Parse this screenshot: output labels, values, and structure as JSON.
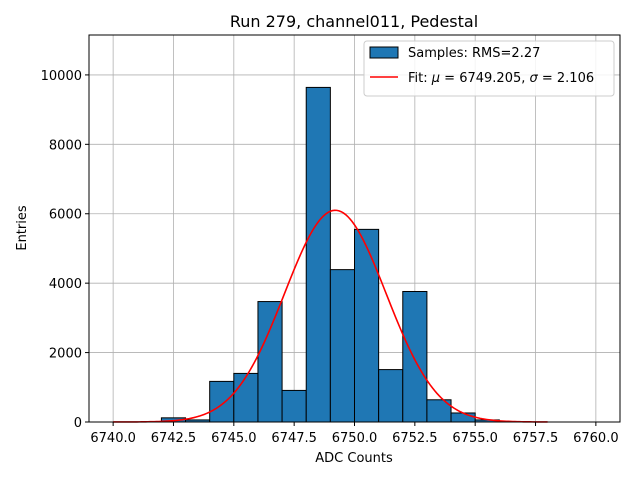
{
  "chart_data": {
    "type": "bar",
    "title": "Run 279, channel011, Pedestal",
    "xlabel": "ADC Counts",
    "ylabel": "Entries",
    "xlim": [
      6739.0,
      6761.0
    ],
    "ylim": [
      0,
      11150
    ],
    "x_ticks": [
      6740.0,
      6742.5,
      6745.0,
      6747.5,
      6750.0,
      6752.5,
      6755.0,
      6757.5,
      6760.0
    ],
    "x_tick_labels": [
      "6740.0",
      "6742.5",
      "6745.0",
      "6747.5",
      "6750.0",
      "6752.5",
      "6755.0",
      "6757.5",
      "6760.0"
    ],
    "y_ticks": [
      0,
      2000,
      4000,
      6000,
      8000,
      10000
    ],
    "y_tick_labels": [
      "0",
      "2000",
      "4000",
      "6000",
      "8000",
      "10000"
    ],
    "grid": true,
    "bin_edges": [
      6742.0,
      6743.0,
      6744.0,
      6745.0,
      6746.0,
      6747.0,
      6748.0,
      6749.0,
      6750.0,
      6751.0,
      6752.0,
      6753.0,
      6754.0,
      6755.0,
      6756.0
    ],
    "series": [
      {
        "name": "Samples: RMS=2.27",
        "kind": "histogram",
        "color": "#1f77b4",
        "values": [
          120,
          60,
          1170,
          1400,
          3470,
          910,
          9640,
          4390,
          5550,
          1510,
          3760,
          640,
          260,
          60
        ]
      },
      {
        "name": "Fit: μ = 6749.205, σ = 2.106",
        "kind": "gaussian-fit",
        "color": "#ff0000",
        "amplitude": 6100,
        "mu": 6749.205,
        "sigma": 2.106,
        "x_range": [
          6740.0,
          6758.0
        ]
      }
    ],
    "legend": {
      "placement": "top-right",
      "entries": [
        {
          "label": "Samples: RMS=2.27",
          "symbol": "patch"
        },
        {
          "label_prefix": "Fit: ",
          "mu_symbol": "μ",
          "mu_text": " = 6749.205, ",
          "sigma_symbol": "σ",
          "sigma_text": " = 2.106",
          "symbol": "line"
        }
      ]
    }
  }
}
